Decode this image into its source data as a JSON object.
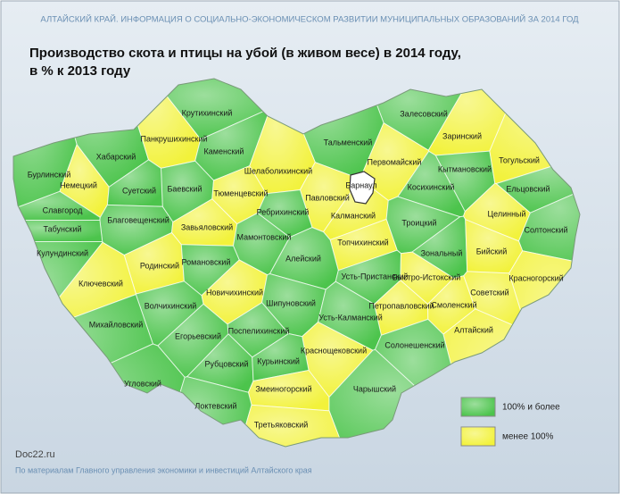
{
  "header": "АЛТАЙСКИЙ КРАЙ. ИНФОРМАЦИЯ О СОЦИАЛЬНО-ЭКОНОМИЧЕСКОМ РАЗВИТИИ МУНИЦИПАЛЬНЫХ ОБРАЗОВАНИЙ  ЗА 2014 ГОД",
  "title": [
    "Производство скота и птицы на убой (в живом весе) в 2014 году,",
    "в % к 2013 году"
  ],
  "legend": [
    {
      "label": "100% и более",
      "color": "#4cc44c"
    },
    {
      "label": "менее 100%",
      "color": "#f2f23a"
    }
  ],
  "city": {
    "name": "Барнаул",
    "color": "#ffffff"
  },
  "districts": [
    {
      "name": "Крутихинский",
      "group": 0
    },
    {
      "name": "Залесовский",
      "group": 0
    },
    {
      "name": "Заринский",
      "group": 1
    },
    {
      "name": "Тальменский",
      "group": 0
    },
    {
      "name": "Первомайский",
      "group": 1
    },
    {
      "name": "Кытмановский",
      "group": 0
    },
    {
      "name": "Тогульский",
      "group": 1
    },
    {
      "name": "Ельцовский",
      "group": 0
    },
    {
      "name": "Косихинский",
      "group": 0
    },
    {
      "name": "Хабарский",
      "group": 0
    },
    {
      "name": "Бурлинский",
      "group": 0
    },
    {
      "name": "Немецкий",
      "group": 1
    },
    {
      "name": "Панкрушихинский",
      "group": 1
    },
    {
      "name": "Каменский",
      "group": 0
    },
    {
      "name": "Шелаболихинский",
      "group": 1
    },
    {
      "name": "Баевский",
      "group": 0
    },
    {
      "name": "Суетский",
      "group": 0
    },
    {
      "name": "Тюменцевский",
      "group": 1
    },
    {
      "name": "Павловский",
      "group": 1
    },
    {
      "name": "Ребрихинский",
      "group": 0
    },
    {
      "name": "Калманский",
      "group": 1
    },
    {
      "name": "Троицкий",
      "group": 0
    },
    {
      "name": "Целинный",
      "group": 1
    },
    {
      "name": "Солтонский",
      "group": 0
    },
    {
      "name": "Славгород",
      "group": 0
    },
    {
      "name": "Благовещенский",
      "group": 0
    },
    {
      "name": "Табунский",
      "group": 0
    },
    {
      "name": "Завьяловский",
      "group": 1
    },
    {
      "name": "Мамонтовский",
      "group": 0
    },
    {
      "name": "Топчихинский",
      "group": 1
    },
    {
      "name": "Зональный",
      "group": 0
    },
    {
      "name": "Бийский",
      "group": 1
    },
    {
      "name": "Кулундинский",
      "group": 0
    },
    {
      "name": "Родинский",
      "group": 1
    },
    {
      "name": "Романовский",
      "group": 0
    },
    {
      "name": "Алейский",
      "group": 0
    },
    {
      "name": "Усть-Пристанский",
      "group": 0
    },
    {
      "name": "Быстро-Истокский",
      "group": 1
    },
    {
      "name": "Красногорский",
      "group": 1
    },
    {
      "name": "Ключевский",
      "group": 1
    },
    {
      "name": "Новичихинский",
      "group": 1
    },
    {
      "name": "Петропавловский",
      "group": 1
    },
    {
      "name": "Смоленский",
      "group": 1
    },
    {
      "name": "Советский",
      "group": 1
    },
    {
      "name": "Волчихинский",
      "group": 0
    },
    {
      "name": "Шипуновский",
      "group": 0
    },
    {
      "name": "Михайловский",
      "group": 0
    },
    {
      "name": "Поспелихинский",
      "group": 0
    },
    {
      "name": "Усть-Калманский",
      "group": 0
    },
    {
      "name": "Алтайский",
      "group": 1
    },
    {
      "name": "Егорьевский",
      "group": 0
    },
    {
      "name": "Солонешенский",
      "group": 0
    },
    {
      "name": "Краснощековский",
      "group": 1
    },
    {
      "name": "Рубцовский",
      "group": 0
    },
    {
      "name": "Курьинский",
      "group": 0
    },
    {
      "name": "Угловский",
      "group": 0
    },
    {
      "name": "Змеиногорский",
      "group": 1
    },
    {
      "name": "Чарышский",
      "group": 0
    },
    {
      "name": "Локтевский",
      "group": 0
    },
    {
      "name": "Третьяковский",
      "group": 1
    }
  ],
  "footer": {
    "site": "Doc22.ru",
    "source": "По материалам Главного управления экономики и инвестиций Алтайского края"
  }
}
